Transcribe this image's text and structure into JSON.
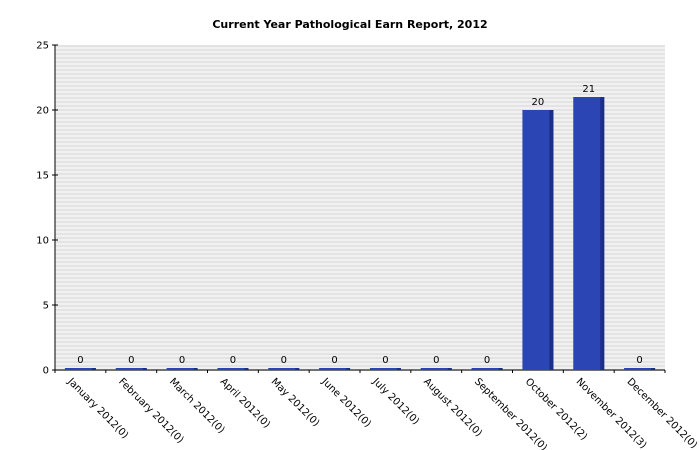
{
  "chart_data": {
    "type": "bar",
    "title": "Current Year Pathological Earn Report, 2012",
    "xlabel": "",
    "ylabel": "",
    "categories": [
      "January 2012(0)",
      "February 2012(0)",
      "March 2012(0)",
      "April 2012(0)",
      "May 2012(0)",
      "June 2012(0)",
      "July 2012(0)",
      "August 2012(0)",
      "September 2012(0)",
      "October 2012(2)",
      "November 2012(3)",
      "December 2012(0)"
    ],
    "values": [
      0,
      0,
      0,
      0,
      0,
      0,
      0,
      0,
      0,
      20,
      21,
      0
    ],
    "data_labels": [
      "0",
      "0",
      "0",
      "0",
      "0",
      "0",
      "0",
      "0",
      "0",
      "20",
      "21",
      "0"
    ],
    "ylim": [
      0,
      25
    ],
    "yticks": [
      "0",
      "5",
      "10",
      "15",
      "20",
      "25"
    ],
    "grid": true,
    "legend": "none",
    "colors": {
      "bar": "#2c45b4",
      "bar_shade": "#1c2f86",
      "plot_bg_a": "#f1f1f1",
      "plot_bg_b": "#e3e3e3"
    }
  }
}
